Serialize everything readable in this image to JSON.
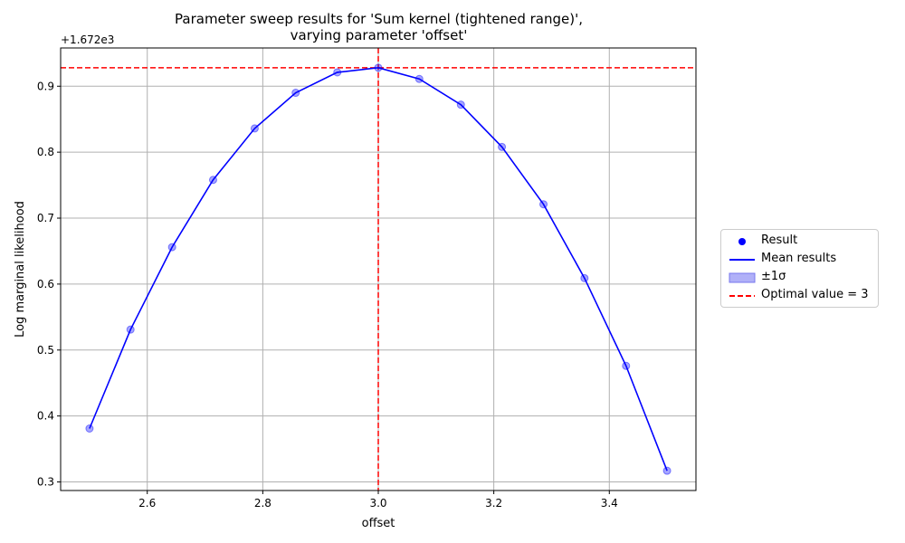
{
  "chart_data": {
    "type": "line",
    "title_lines": [
      "Parameter sweep results for 'Sum kernel (tightened range)',",
      "varying parameter 'offset'"
    ],
    "xlabel": "offset",
    "ylabel": "Log marginal likelihood",
    "y_offset_label": "+1.672e3",
    "xlim": [
      2.45,
      3.55
    ],
    "ylim": [
      0.287,
      0.958
    ],
    "x_ticks": [
      2.6,
      2.8,
      3.0,
      3.2,
      3.4
    ],
    "x_tick_labels": [
      "2.6",
      "2.8",
      "3.0",
      "3.2",
      "3.4"
    ],
    "y_ticks": [
      0.3,
      0.4,
      0.5,
      0.6,
      0.7,
      0.8,
      0.9
    ],
    "y_tick_labels": [
      "0.3",
      "0.4",
      "0.5",
      "0.6",
      "0.7",
      "0.8",
      "0.9"
    ],
    "grid": true,
    "series": [
      {
        "name": "Result",
        "kind": "scatter",
        "color": "#0000ff",
        "x": [
          2.5,
          2.571,
          2.643,
          2.714,
          2.786,
          2.857,
          2.929,
          3.0,
          3.071,
          3.143,
          3.214,
          3.286,
          3.357,
          3.429,
          3.5
        ],
        "y": [
          0.381,
          0.531,
          0.656,
          0.758,
          0.836,
          0.89,
          0.921,
          0.928,
          0.911,
          0.872,
          0.808,
          0.721,
          0.609,
          0.476,
          0.317
        ]
      },
      {
        "name": "Mean results",
        "kind": "line",
        "color": "#0000ff",
        "x": [
          2.5,
          2.571,
          2.643,
          2.714,
          2.786,
          2.857,
          2.929,
          3.0,
          3.071,
          3.143,
          3.214,
          3.286,
          3.357,
          3.429,
          3.5
        ],
        "y": [
          0.381,
          0.531,
          0.656,
          0.758,
          0.836,
          0.89,
          0.921,
          0.928,
          0.911,
          0.872,
          0.808,
          0.721,
          0.609,
          0.476,
          0.317
        ]
      }
    ],
    "optimal": {
      "x": 3.0,
      "y": 0.928,
      "color": "#ff0000"
    },
    "legend": {
      "position": "right",
      "entries": [
        "Result",
        "Mean results",
        "±1σ",
        "Optimal value = 3"
      ]
    },
    "band_color": "#b0b0f8"
  }
}
